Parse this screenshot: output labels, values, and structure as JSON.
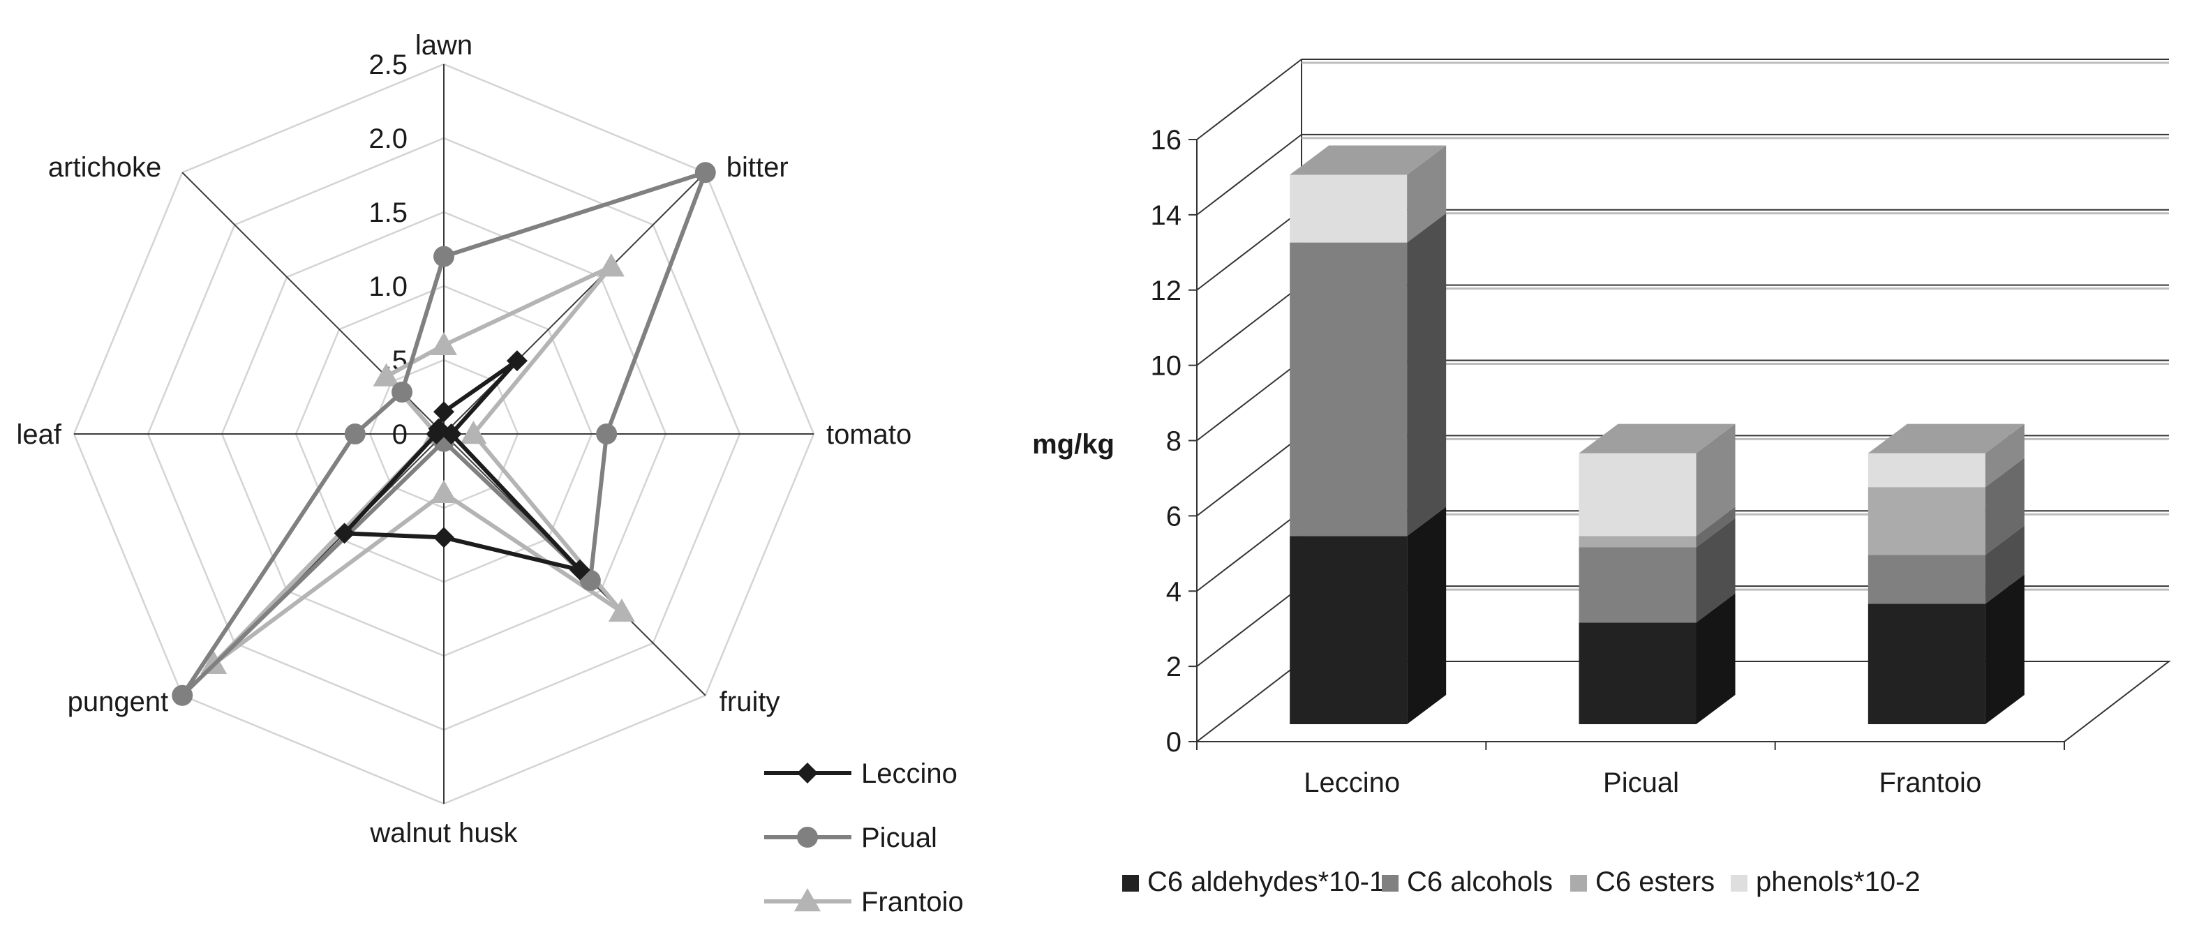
{
  "chart_data": [
    {
      "type": "radar",
      "axes": [
        "lawn",
        "bitter",
        "tomato",
        "fruity",
        "walnut husk",
        "pungent",
        "leaf",
        "artichoke"
      ],
      "ticks": [
        "0",
        ".5",
        "1.0",
        "1.5",
        "2.0",
        "2.5"
      ],
      "rmax": 2.5,
      "legend_position": "bottom-right",
      "series": [
        {
          "name": "Leccino",
          "marker": "diamond",
          "color": "#1c1c1c",
          "values": [
            0.15,
            0.7,
            0.05,
            1.3,
            0.7,
            0.95,
            0.05,
            0.05
          ]
        },
        {
          "name": "Picual",
          "marker": "circle",
          "color": "#808080",
          "values": [
            1.2,
            2.5,
            1.1,
            1.4,
            0.05,
            2.5,
            0.6,
            0.4
          ]
        },
        {
          "name": "Frantoio",
          "marker": "triangle",
          "color": "#b4b4b4",
          "values": [
            0.6,
            1.6,
            0.2,
            1.7,
            0.4,
            2.2,
            0.05,
            0.55
          ]
        }
      ]
    },
    {
      "type": "bar",
      "stacked": true,
      "style": "3d",
      "categories": [
        "Leccino",
        "Picual",
        "Frantoio"
      ],
      "ylabel": "mg/kg",
      "ylim": [
        0,
        16
      ],
      "yticks": [
        0,
        2,
        4,
        6,
        8,
        10,
        12,
        14,
        16
      ],
      "grid": true,
      "legend_position": "bottom",
      "series": [
        {
          "name": "C6 aldehydes*10-1",
          "color": "#222222",
          "values": [
            5.0,
            2.7,
            3.2
          ]
        },
        {
          "name": "C6 alcohols",
          "color": "#808080",
          "values": [
            7.8,
            2.0,
            1.3
          ]
        },
        {
          "name": "C6 esters",
          "color": "#ababab",
          "values": [
            0.0,
            0.3,
            1.8
          ]
        },
        {
          "name": "phenols*10-2",
          "color": "#dedede",
          "values": [
            1.8,
            2.2,
            0.9
          ]
        }
      ]
    }
  ]
}
